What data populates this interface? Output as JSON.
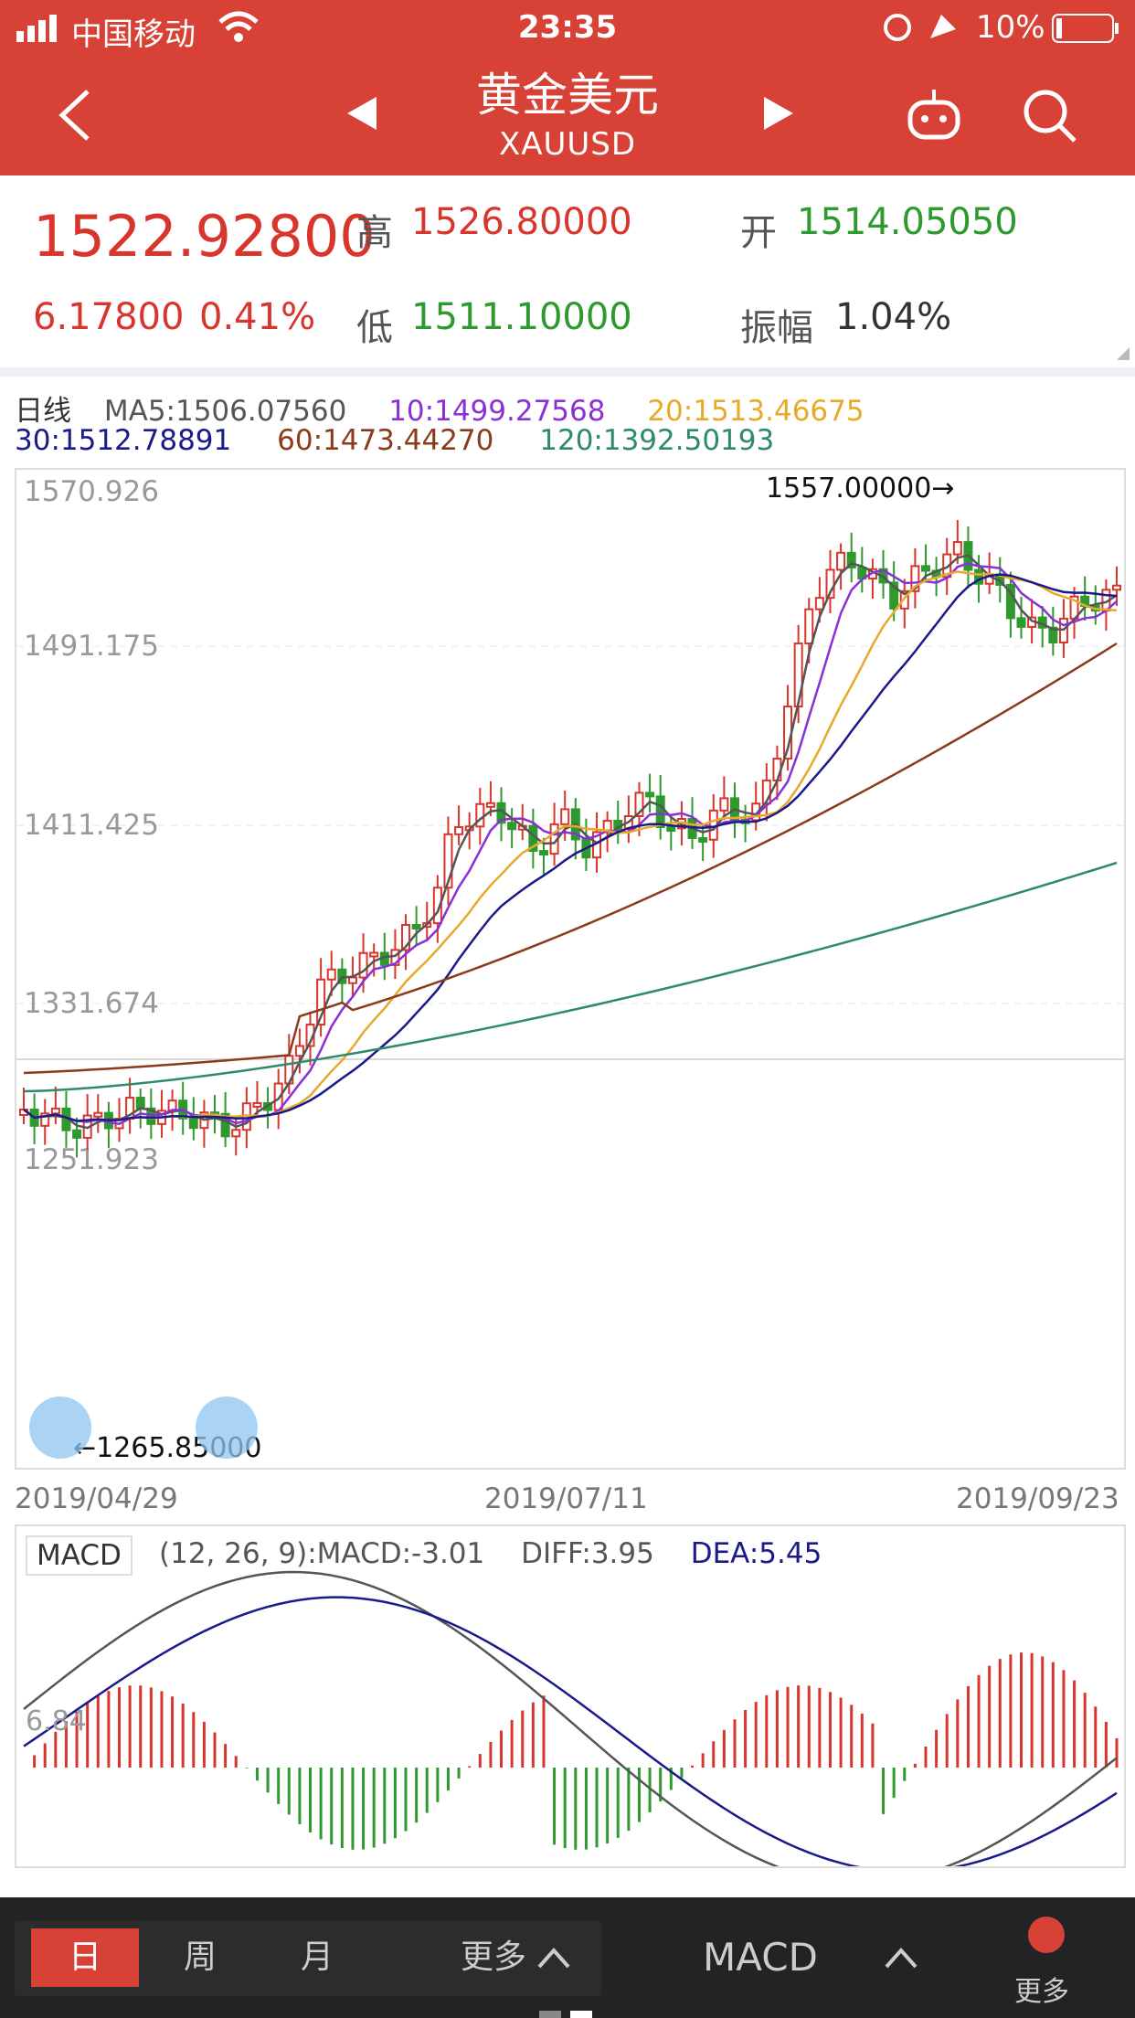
{
  "status_bar": {
    "carrier": "中国移动",
    "time": "23:35",
    "battery": "10%"
  },
  "nav": {
    "title": "黄金美元",
    "symbol": "XAUUSD"
  },
  "quote": {
    "price": "1522.92800",
    "change": "6.17800",
    "change_pct": "0.41%",
    "high_label": "高",
    "high": "1526.80000",
    "low_label": "低",
    "low": "1511.10000",
    "open_label": "开",
    "open": "1514.05050",
    "amplitude_label": "振幅",
    "amplitude": "1.04%"
  },
  "ma_legend": {
    "period": "日线",
    "ma5": "MA5:1506.07560",
    "ma10": "10:1499.27568",
    "ma20": "20:1513.46675",
    "ma30": "30:1512.78891",
    "ma60": "60:1473.44270",
    "ma120": "120:1392.50193"
  },
  "colors": {
    "header": "#d84136",
    "up": "#d8352d",
    "down": "#2e9a2e",
    "ma5": "#555555",
    "ma10": "#8b2fd6",
    "ma20": "#e8a92a",
    "ma30": "#1a1a8a",
    "ma60": "#8b3a1a",
    "ma120": "#2e8a6a"
  },
  "chart_data": {
    "type": "candlestick",
    "y_ticks": [
      "1570.926",
      "1491.175",
      "1411.425",
      "1331.674",
      "1251.923"
    ],
    "x_ticks": [
      "2019/04/29",
      "2019/07/11",
      "2019/09/23"
    ],
    "annotations": {
      "max": "1557.00000→",
      "min": "←1265.85000"
    },
    "ylim": [
      1251.923,
      1570.926
    ]
  },
  "macd": {
    "label": "MACD",
    "params": "(12, 26, 9):MACD:-3.01",
    "diff": "DIFF:3.95",
    "dea": "DEA:5.45",
    "tick": "6.84"
  },
  "bottom_bar": {
    "tabs": [
      "日",
      "周",
      "月"
    ],
    "more": "更多",
    "indicator": "MACD",
    "more_right": "更多"
  }
}
